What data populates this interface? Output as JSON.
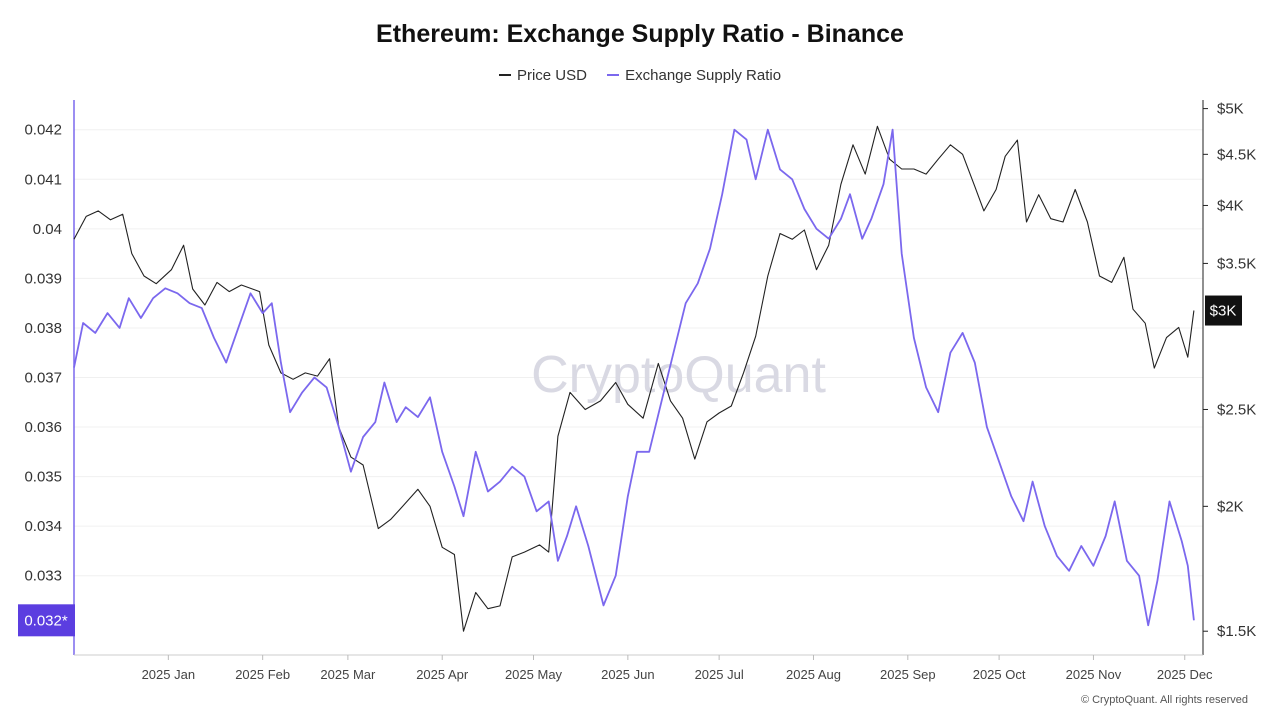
{
  "chart_data": {
    "type": "line",
    "title": "Ethereum: Exchange Supply Ratio - Binance",
    "legend_position": "top-center",
    "grid": true,
    "watermark": "CryptoQuant",
    "copyright": "© CryptoQuant. All rights reserved",
    "x_ticks": [
      "2025 Jan",
      "2025 Feb",
      "2025 Mar",
      "2025 Apr",
      "2025 May",
      "2025 Jun",
      "2025 Jul",
      "2025 Aug",
      "2025 Sep",
      "2025 Oct",
      "2025 Nov",
      "2025 Dec"
    ],
    "x_range": [
      "2024-12-01",
      "2025-12-07"
    ],
    "left_axis": {
      "ticks": [
        "0.042",
        "0.041",
        "0.04",
        "0.039",
        "0.038",
        "0.037",
        "0.036",
        "0.035",
        "0.034",
        "0.033"
      ],
      "tick_values": [
        0.042,
        0.041,
        0.04,
        0.039,
        0.038,
        0.037,
        0.036,
        0.035,
        0.034,
        0.033
      ],
      "range": [
        0.0314,
        0.0426
      ],
      "current_label": "0.032*",
      "current_color": "#5b3ee0"
    },
    "right_axis": {
      "scale": "log",
      "ticks": [
        "$5K",
        "$4.5K",
        "$4K",
        "$3.5K",
        "$2.5K",
        "$2K",
        "$1.5K"
      ],
      "tick_values": [
        5000,
        4500,
        4000,
        3500,
        2500,
        2000,
        1500
      ],
      "range": [
        1420,
        5100
      ],
      "current_label": "$3K",
      "current_color": "#111111"
    },
    "series": [
      {
        "name": "Price USD",
        "axis": "right",
        "color": "#222222",
        "points": [
          [
            "2024-12-01",
            3700
          ],
          [
            "2024-12-05",
            3900
          ],
          [
            "2024-12-09",
            3950
          ],
          [
            "2024-12-13",
            3870
          ],
          [
            "2024-12-17",
            3920
          ],
          [
            "2024-12-20",
            3580
          ],
          [
            "2024-12-24",
            3400
          ],
          [
            "2024-12-28",
            3340
          ],
          [
            "2025-01-02",
            3450
          ],
          [
            "2025-01-06",
            3650
          ],
          [
            "2025-01-09",
            3300
          ],
          [
            "2025-01-13",
            3180
          ],
          [
            "2025-01-17",
            3350
          ],
          [
            "2025-01-21",
            3280
          ],
          [
            "2025-01-25",
            3330
          ],
          [
            "2025-01-31",
            3280
          ],
          [
            "2025-02-03",
            2900
          ],
          [
            "2025-02-07",
            2720
          ],
          [
            "2025-02-11",
            2680
          ],
          [
            "2025-02-15",
            2720
          ],
          [
            "2025-02-19",
            2700
          ],
          [
            "2025-02-23",
            2810
          ],
          [
            "2025-02-26",
            2400
          ],
          [
            "2025-03-02",
            2240
          ],
          [
            "2025-03-06",
            2200
          ],
          [
            "2025-03-11",
            1900
          ],
          [
            "2025-03-15",
            1940
          ],
          [
            "2025-03-19",
            2000
          ],
          [
            "2025-03-24",
            2080
          ],
          [
            "2025-03-28",
            2000
          ],
          [
            "2025-04-01",
            1820
          ],
          [
            "2025-04-05",
            1790
          ],
          [
            "2025-04-08",
            1500
          ],
          [
            "2025-04-12",
            1640
          ],
          [
            "2025-04-16",
            1580
          ],
          [
            "2025-04-20",
            1590
          ],
          [
            "2025-04-24",
            1780
          ],
          [
            "2025-04-28",
            1800
          ],
          [
            "2025-05-03",
            1830
          ],
          [
            "2025-05-06",
            1800
          ],
          [
            "2025-05-09",
            2350
          ],
          [
            "2025-05-13",
            2600
          ],
          [
            "2025-05-18",
            2500
          ],
          [
            "2025-05-23",
            2550
          ],
          [
            "2025-05-28",
            2660
          ],
          [
            "2025-06-01",
            2530
          ],
          [
            "2025-06-06",
            2450
          ],
          [
            "2025-06-11",
            2780
          ],
          [
            "2025-06-15",
            2550
          ],
          [
            "2025-06-19",
            2450
          ],
          [
            "2025-06-23",
            2230
          ],
          [
            "2025-06-27",
            2430
          ],
          [
            "2025-07-01",
            2480
          ],
          [
            "2025-07-05",
            2520
          ],
          [
            "2025-07-09",
            2720
          ],
          [
            "2025-07-13",
            2960
          ],
          [
            "2025-07-17",
            3400
          ],
          [
            "2025-07-21",
            3750
          ],
          [
            "2025-07-25",
            3700
          ],
          [
            "2025-07-29",
            3780
          ],
          [
            "2025-08-02",
            3450
          ],
          [
            "2025-08-06",
            3650
          ],
          [
            "2025-08-10",
            4200
          ],
          [
            "2025-08-14",
            4600
          ],
          [
            "2025-08-18",
            4300
          ],
          [
            "2025-08-22",
            4800
          ],
          [
            "2025-08-26",
            4450
          ],
          [
            "2025-08-30",
            4350
          ],
          [
            "2025-09-03",
            4350
          ],
          [
            "2025-09-07",
            4300
          ],
          [
            "2025-09-11",
            4450
          ],
          [
            "2025-09-15",
            4600
          ],
          [
            "2025-09-19",
            4500
          ],
          [
            "2025-09-23",
            4180
          ],
          [
            "2025-09-26",
            3950
          ],
          [
            "2025-09-30",
            4150
          ],
          [
            "2025-10-03",
            4480
          ],
          [
            "2025-10-07",
            4650
          ],
          [
            "2025-10-10",
            3850
          ],
          [
            "2025-10-14",
            4100
          ],
          [
            "2025-10-18",
            3880
          ],
          [
            "2025-10-22",
            3850
          ],
          [
            "2025-10-26",
            4150
          ],
          [
            "2025-10-30",
            3850
          ],
          [
            "2025-11-03",
            3400
          ],
          [
            "2025-11-07",
            3350
          ],
          [
            "2025-11-11",
            3550
          ],
          [
            "2025-11-14",
            3150
          ],
          [
            "2025-11-18",
            3050
          ],
          [
            "2025-11-21",
            2750
          ],
          [
            "2025-11-25",
            2950
          ],
          [
            "2025-11-29",
            3020
          ],
          [
            "2025-12-02",
            2820
          ],
          [
            "2025-12-04",
            3140
          ]
        ]
      },
      {
        "name": "Exchange Supply Ratio",
        "axis": "left",
        "color": "#7b68ee",
        "points": [
          [
            "2024-12-01",
            0.0372
          ],
          [
            "2024-12-04",
            0.0381
          ],
          [
            "2024-12-08",
            0.0379
          ],
          [
            "2024-12-12",
            0.0383
          ],
          [
            "2024-12-16",
            0.038
          ],
          [
            "2024-12-19",
            0.0386
          ],
          [
            "2024-12-23",
            0.0382
          ],
          [
            "2024-12-27",
            0.0386
          ],
          [
            "2024-12-31",
            0.0388
          ],
          [
            "2025-01-04",
            0.0387
          ],
          [
            "2025-01-08",
            0.0385
          ],
          [
            "2025-01-12",
            0.0384
          ],
          [
            "2025-01-16",
            0.0378
          ],
          [
            "2025-01-20",
            0.0373
          ],
          [
            "2025-01-24",
            0.038
          ],
          [
            "2025-01-28",
            0.0387
          ],
          [
            "2025-02-01",
            0.0383
          ],
          [
            "2025-02-04",
            0.0385
          ],
          [
            "2025-02-07",
            0.0373
          ],
          [
            "2025-02-10",
            0.0363
          ],
          [
            "2025-02-14",
            0.0367
          ],
          [
            "2025-02-18",
            0.037
          ],
          [
            "2025-02-22",
            0.0368
          ],
          [
            "2025-02-26",
            0.036
          ],
          [
            "2025-03-02",
            0.0351
          ],
          [
            "2025-03-06",
            0.0358
          ],
          [
            "2025-03-10",
            0.0361
          ],
          [
            "2025-03-13",
            0.0369
          ],
          [
            "2025-03-17",
            0.0361
          ],
          [
            "2025-03-20",
            0.0364
          ],
          [
            "2025-03-24",
            0.0362
          ],
          [
            "2025-03-28",
            0.0366
          ],
          [
            "2025-04-01",
            0.0355
          ],
          [
            "2025-04-05",
            0.0348
          ],
          [
            "2025-04-08",
            0.0342
          ],
          [
            "2025-04-12",
            0.0355
          ],
          [
            "2025-04-16",
            0.0347
          ],
          [
            "2025-04-20",
            0.0349
          ],
          [
            "2025-04-24",
            0.0352
          ],
          [
            "2025-04-28",
            0.035
          ],
          [
            "2025-05-02",
            0.0343
          ],
          [
            "2025-05-06",
            0.0345
          ],
          [
            "2025-05-09",
            0.0333
          ],
          [
            "2025-05-12",
            0.0338
          ],
          [
            "2025-05-15",
            0.0344
          ],
          [
            "2025-05-19",
            0.0336
          ],
          [
            "2025-05-24",
            0.0324
          ],
          [
            "2025-05-28",
            0.033
          ],
          [
            "2025-06-01",
            0.0346
          ],
          [
            "2025-06-04",
            0.0355
          ],
          [
            "2025-06-08",
            0.0355
          ],
          [
            "2025-06-12",
            0.0365
          ],
          [
            "2025-06-16",
            0.0375
          ],
          [
            "2025-06-20",
            0.0385
          ],
          [
            "2025-06-24",
            0.0389
          ],
          [
            "2025-06-28",
            0.0396
          ],
          [
            "2025-07-02",
            0.0407
          ],
          [
            "2025-07-06",
            0.042
          ],
          [
            "2025-07-10",
            0.0418
          ],
          [
            "2025-07-13",
            0.041
          ],
          [
            "2025-07-17",
            0.042
          ],
          [
            "2025-07-21",
            0.0412
          ],
          [
            "2025-07-25",
            0.041
          ],
          [
            "2025-07-29",
            0.0404
          ],
          [
            "2025-08-02",
            0.04
          ],
          [
            "2025-08-06",
            0.0398
          ],
          [
            "2025-08-10",
            0.0402
          ],
          [
            "2025-08-13",
            0.0407
          ],
          [
            "2025-08-17",
            0.0398
          ],
          [
            "2025-08-20",
            0.0402
          ],
          [
            "2025-08-24",
            0.0409
          ],
          [
            "2025-08-27",
            0.042
          ],
          [
            "2025-08-30",
            0.0395
          ],
          [
            "2025-09-03",
            0.0378
          ],
          [
            "2025-09-07",
            0.0368
          ],
          [
            "2025-09-11",
            0.0363
          ],
          [
            "2025-09-15",
            0.0375
          ],
          [
            "2025-09-19",
            0.0379
          ],
          [
            "2025-09-23",
            0.0373
          ],
          [
            "2025-09-27",
            0.036
          ],
          [
            "2025-10-01",
            0.0353
          ],
          [
            "2025-10-05",
            0.0346
          ],
          [
            "2025-10-09",
            0.0341
          ],
          [
            "2025-10-12",
            0.0349
          ],
          [
            "2025-10-16",
            0.034
          ],
          [
            "2025-10-20",
            0.0334
          ],
          [
            "2025-10-24",
            0.0331
          ],
          [
            "2025-10-28",
            0.0336
          ],
          [
            "2025-11-01",
            0.0332
          ],
          [
            "2025-11-05",
            0.0338
          ],
          [
            "2025-11-08",
            0.0345
          ],
          [
            "2025-11-12",
            0.0333
          ],
          [
            "2025-11-16",
            0.033
          ],
          [
            "2025-11-19",
            0.032
          ],
          [
            "2025-11-22",
            0.0329
          ],
          [
            "2025-11-26",
            0.0345
          ],
          [
            "2025-11-30",
            0.0337
          ],
          [
            "2025-12-02",
            0.0332
          ],
          [
            "2025-12-04",
            0.0321
          ]
        ]
      }
    ]
  }
}
